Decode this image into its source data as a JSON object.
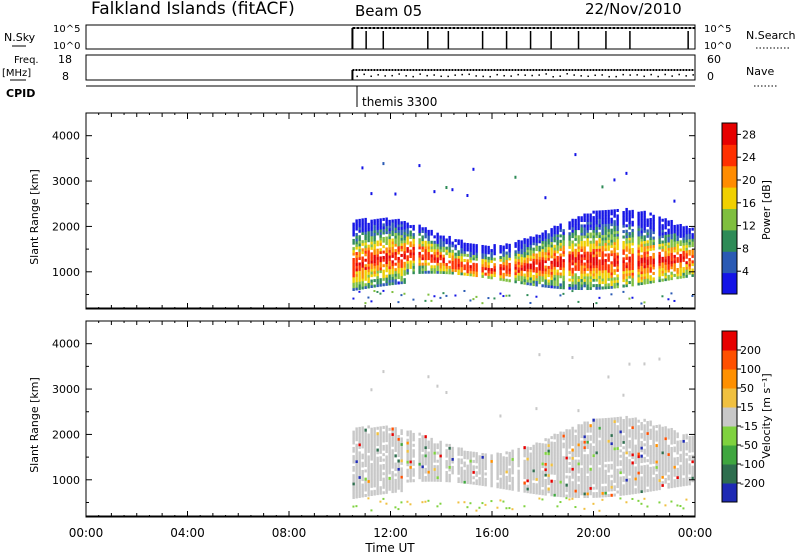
{
  "header": {
    "station": "Falkland Islands (fitACF)",
    "beam": "Beam 05",
    "date": "22/Nov/2010"
  },
  "param_panels": {
    "nsky_label": "N.Sky",
    "nsky_ticks": [
      "10^5",
      "10^0"
    ],
    "nsearch_label": "N.Search",
    "nsearch_ticks": [
      "10^5",
      "10^0"
    ],
    "freq_label_1": "Freq.",
    "freq_label_2": "[MHz]",
    "freq_ticks": [
      "18",
      "8"
    ],
    "nave_label": "Nave",
    "nave_ticks": [
      "60",
      "0"
    ],
    "cpid_label": "CPID",
    "cpid_value": "themis 3300"
  },
  "chart_data": [
    {
      "type": "heatmap",
      "title": "",
      "xlabel": "",
      "ylabel": "Slant Range [km]",
      "ylim": [
        180,
        4500
      ],
      "yticks": [
        "1000",
        "2000",
        "3000",
        "4000"
      ],
      "colorbar": {
        "label": "Power [dB]",
        "ticks": [
          "4",
          "8",
          "12",
          "16",
          "20",
          "24",
          "28"
        ],
        "range": [
          0,
          30
        ],
        "colors": [
          "#1414e6",
          "#2a5ab4",
          "#2e8b57",
          "#7fbf3f",
          "#f0d000",
          "#ff8c00",
          "#ff3000",
          "#e60000"
        ]
      },
      "data_start_ut_hours": 10.5,
      "data_end_ut_hours": 24
    },
    {
      "type": "heatmap",
      "title": "",
      "xlabel": "Time UT",
      "ylabel": "Slant Range [km]",
      "ylim": [
        180,
        4500
      ],
      "yticks": [
        "1000",
        "2000",
        "3000",
        "4000"
      ],
      "xticks": [
        "00:00",
        "04:00",
        "08:00",
        "12:00",
        "16:00",
        "20:00",
        "00:00"
      ],
      "colorbar": {
        "label": "Velocity [m s⁻¹]",
        "ticks": [
          "200",
          "100",
          "50",
          "15",
          "-15",
          "-50",
          "-100",
          "-200"
        ],
        "range": [
          -250,
          250
        ],
        "colors": [
          "#1e2ab4",
          "#2e6e4e",
          "#3fa63f",
          "#7fd23f",
          "#c8c8c8",
          "#f0c040",
          "#ff9000",
          "#ff5000",
          "#e60000"
        ]
      },
      "data_start_ut_hours": 10.5,
      "data_end_ut_hours": 24
    }
  ]
}
